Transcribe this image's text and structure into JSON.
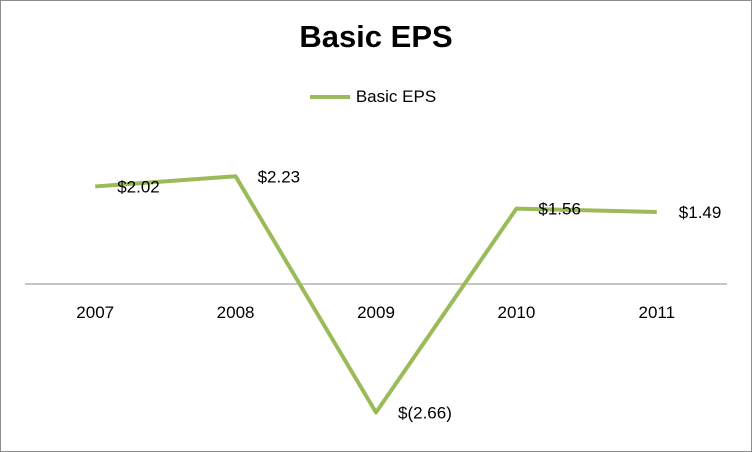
{
  "chart_data": {
    "type": "line",
    "title": "Basic EPS",
    "categories": [
      "2007",
      "2008",
      "2009",
      "2010",
      "2011"
    ],
    "series": [
      {
        "name": "Basic EPS",
        "values": [
          2.02,
          2.23,
          -2.66,
          1.56,
          1.49
        ],
        "labels": [
          "$2.02",
          "$2.23",
          "$(2.66)",
          "$1.56",
          "$1.49"
        ]
      }
    ],
    "xlabel": "",
    "ylabel": "",
    "ylim": [
      -3,
      3
    ],
    "legend_position": "top",
    "grid": false,
    "colors": {
      "series": "#9BBB59",
      "axis": "#8c8c8c"
    }
  }
}
